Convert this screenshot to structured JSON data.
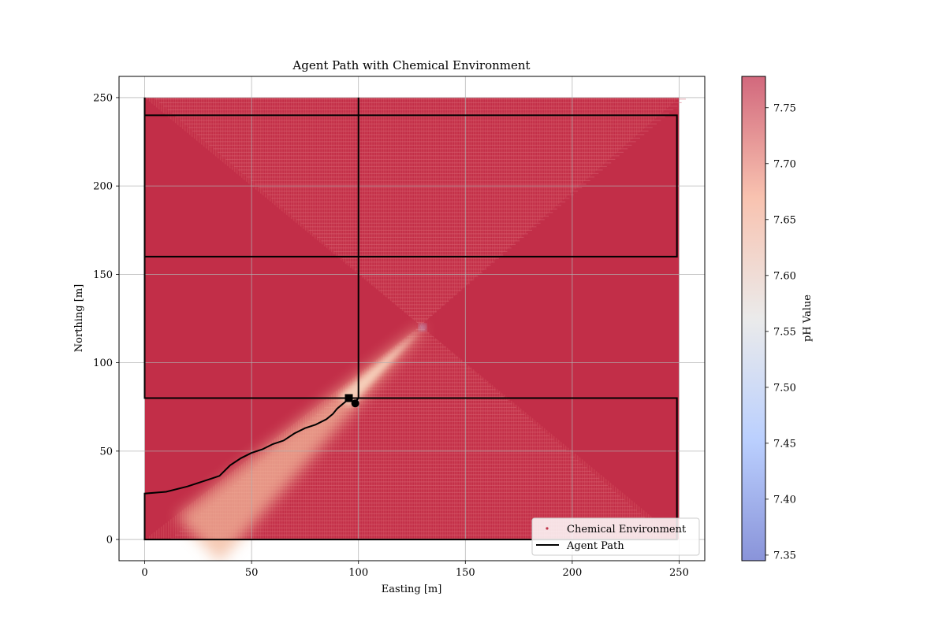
{
  "chart_data": {
    "type": "scatter",
    "title": "Agent Path with Chemical Environment",
    "xlabel": "Easting [m]",
    "ylabel": "Northing [m]",
    "xlim": [
      -12,
      262
    ],
    "ylim": [
      -12,
      262
    ],
    "xticks": [
      0,
      50,
      100,
      150,
      200,
      250
    ],
    "yticks": [
      0,
      50,
      100,
      150,
      200,
      250
    ],
    "grid": true,
    "legend_position": "lower-right",
    "environment": {
      "x_range": [
        0,
        250
      ],
      "y_range": [
        0,
        250
      ],
      "background_ph": 7.772,
      "plume": {
        "source": [
          130,
          120
        ],
        "end": [
          25,
          0
        ],
        "min_ph": 7.5,
        "color_hex": "#f2b79a"
      },
      "hatch_pattern": "hourglass"
    },
    "colorbar": {
      "label": "pH Value",
      "range": [
        7.345,
        7.778
      ],
      "ticks": [
        7.35,
        7.4,
        7.45,
        7.5,
        7.55,
        7.6,
        7.65,
        7.7,
        7.75
      ],
      "tick_labels": [
        "7.35",
        "7.40",
        "7.45",
        "7.50",
        "7.55",
        "7.60",
        "7.65",
        "7.70",
        "7.75"
      ],
      "colormap": "coolwarm",
      "alpha": 0.6
    },
    "series": [
      {
        "name": "Chemical Environment",
        "kind": "scatter",
        "color": "#c0354a"
      },
      {
        "name": "Agent Path",
        "kind": "line",
        "color": "#000000",
        "points": [
          [
            0,
            250
          ],
          [
            0,
            160
          ],
          [
            249,
            160
          ],
          [
            249,
            240
          ],
          [
            0,
            240
          ],
          [
            0,
            160
          ],
          [
            0,
            80
          ],
          [
            249,
            80
          ],
          [
            249,
            0
          ],
          [
            0,
            0
          ],
          [
            0,
            26
          ],
          [
            10,
            27
          ],
          [
            20,
            30
          ],
          [
            30,
            34
          ],
          [
            35,
            36
          ],
          [
            40,
            42
          ],
          [
            45,
            46
          ],
          [
            50,
            49
          ],
          [
            55,
            51
          ],
          [
            60,
            54
          ],
          [
            65,
            56
          ],
          [
            70,
            60
          ],
          [
            75,
            63
          ],
          [
            80,
            65
          ],
          [
            85,
            68
          ],
          [
            88,
            71
          ],
          [
            90,
            74
          ],
          [
            93,
            77
          ],
          [
            96,
            80
          ],
          [
            98,
            77
          ],
          [
            100,
            80
          ],
          [
            100,
            160
          ],
          [
            100,
            250
          ]
        ]
      }
    ],
    "markers": [
      {
        "shape": "square",
        "x": 95.5,
        "y": 80
      },
      {
        "shape": "circle",
        "x": 98.5,
        "y": 77
      }
    ]
  }
}
